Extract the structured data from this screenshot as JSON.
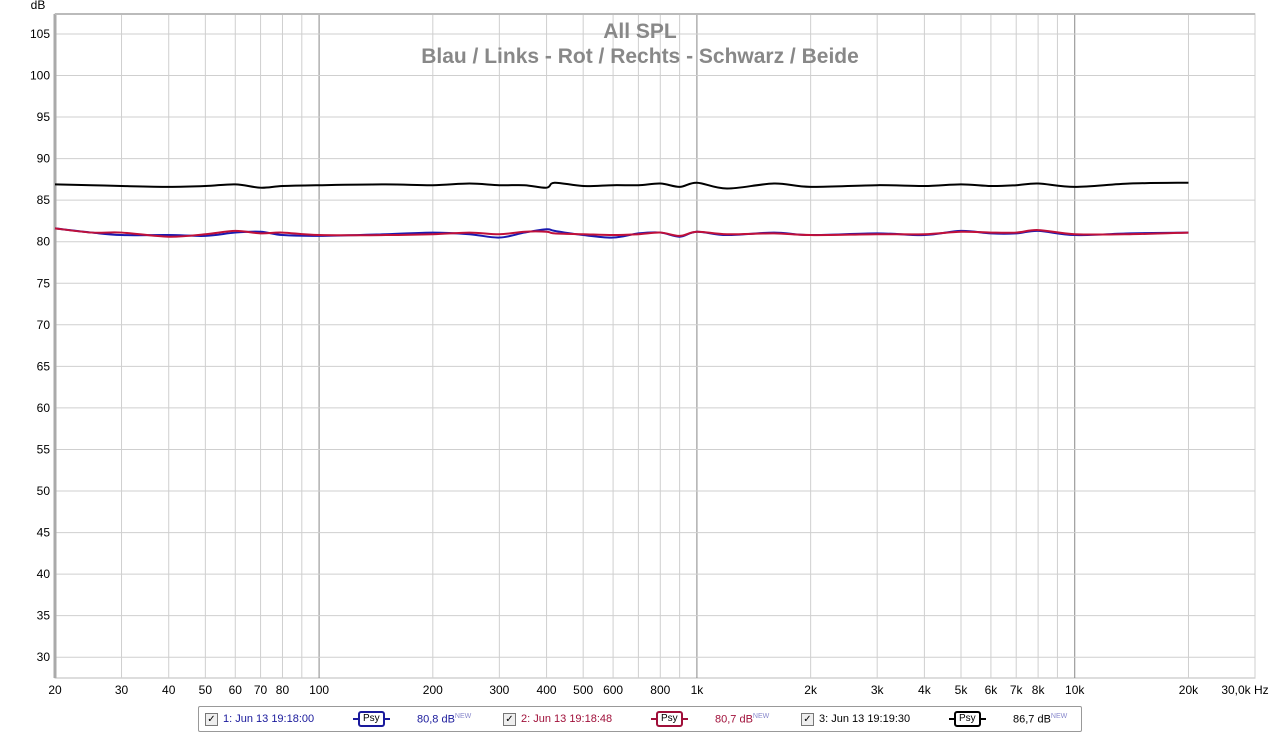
{
  "chart_data": {
    "type": "line",
    "title": "All SPL",
    "subtitle": "Blau / Links - Rot / Rechts - Schwarz / Beide",
    "ylabel": "dB",
    "xlabel": "Hz",
    "x_scale": "log",
    "xlim": [
      20,
      30000
    ],
    "ylim": [
      27.5,
      107.4
    ],
    "grid": true,
    "y_ticks": [
      30,
      35,
      40,
      45,
      50,
      55,
      60,
      65,
      70,
      75,
      80,
      85,
      90,
      95,
      100,
      105
    ],
    "x_ticks": [
      {
        "v": 20,
        "t": "20"
      },
      {
        "v": 30,
        "t": "30"
      },
      {
        "v": 40,
        "t": "40"
      },
      {
        "v": 50,
        "t": "50"
      },
      {
        "v": 60,
        "t": "60"
      },
      {
        "v": 70,
        "t": "70"
      },
      {
        "v": 80,
        "t": "80"
      },
      {
        "v": 100,
        "t": "100"
      },
      {
        "v": 200,
        "t": "200"
      },
      {
        "v": 300,
        "t": "300"
      },
      {
        "v": 400,
        "t": "400"
      },
      {
        "v": 500,
        "t": "500"
      },
      {
        "v": 600,
        "t": "600"
      },
      {
        "v": 800,
        "t": "800"
      },
      {
        "v": 1000,
        "t": "1k"
      },
      {
        "v": 2000,
        "t": "2k"
      },
      {
        "v": 3000,
        "t": "3k"
      },
      {
        "v": 4000,
        "t": "4k"
      },
      {
        "v": 5000,
        "t": "5k"
      },
      {
        "v": 6000,
        "t": "6k"
      },
      {
        "v": 7000,
        "t": "7k"
      },
      {
        "v": 8000,
        "t": "8k"
      },
      {
        "v": 10000,
        "t": "10k"
      },
      {
        "v": 20000,
        "t": "20k"
      },
      {
        "v": 30000,
        "t": "30,0k Hz"
      }
    ],
    "x": [
      20,
      25,
      30,
      40,
      50,
      60,
      70,
      80,
      100,
      150,
      200,
      250,
      300,
      350,
      400,
      420,
      500,
      600,
      700,
      800,
      900,
      1000,
      1200,
      1600,
      2000,
      3000,
      4000,
      5000,
      6000,
      7000,
      8000,
      10000,
      14000,
      20000
    ],
    "series": [
      {
        "color": "#1a1ab0",
        "values": [
          81.6,
          81.1,
          80.8,
          80.8,
          80.7,
          81.1,
          81.2,
          80.8,
          80.7,
          80.9,
          81.1,
          80.9,
          80.5,
          81.1,
          81.5,
          81.3,
          80.8,
          80.5,
          81.0,
          81.1,
          80.6,
          81.2,
          80.8,
          81.1,
          80.8,
          81.0,
          80.8,
          81.3,
          81.0,
          81.0,
          81.3,
          80.8,
          81.0,
          81.1
        ]
      },
      {
        "color": "#c0103a",
        "values": [
          81.6,
          81.1,
          81.1,
          80.6,
          80.9,
          81.3,
          81.0,
          81.1,
          80.8,
          80.8,
          80.9,
          81.1,
          80.9,
          81.2,
          81.2,
          81.0,
          80.9,
          80.8,
          80.9,
          81.1,
          80.7,
          81.2,
          80.9,
          81.0,
          80.8,
          80.9,
          80.9,
          81.2,
          81.1,
          81.1,
          81.4,
          80.9,
          80.9,
          81.1
        ]
      },
      {
        "color": "#000000",
        "values": [
          86.9,
          86.8,
          86.7,
          86.6,
          86.7,
          86.9,
          86.5,
          86.7,
          86.8,
          86.9,
          86.8,
          87.0,
          86.8,
          86.8,
          86.5,
          87.1,
          86.7,
          86.8,
          86.8,
          87.0,
          86.6,
          87.1,
          86.4,
          87.0,
          86.6,
          86.8,
          86.7,
          86.9,
          86.7,
          86.8,
          87.0,
          86.6,
          87.0,
          87.1
        ]
      }
    ]
  },
  "legend": [
    {
      "checked": "✓",
      "label": "1: Jun 13 19:18:00",
      "psy": "Psy",
      "value": "80,8 dB",
      "badge": "NEW",
      "color": "#1a1a9c"
    },
    {
      "checked": "✓",
      "label": "2: Jun 13 19:18:48",
      "psy": "Psy",
      "value": "80,7 dB",
      "badge": "NEW",
      "color": "#a0103a"
    },
    {
      "checked": "✓",
      "label": "3: Jun 13 19:19:30",
      "psy": "Psy",
      "value": "86,7 dB",
      "badge": "NEW",
      "color": "#000000"
    }
  ]
}
